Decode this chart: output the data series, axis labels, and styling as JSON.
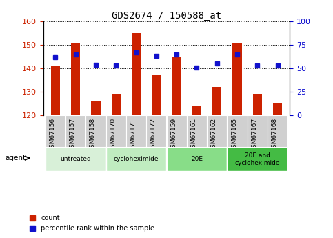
{
  "title": "GDS2674 / 150588_at",
  "samples": [
    "GSM67156",
    "GSM67157",
    "GSM67158",
    "GSM67170",
    "GSM67171",
    "GSM67172",
    "GSM67159",
    "GSM67161",
    "GSM67162",
    "GSM67165",
    "GSM67167",
    "GSM67168"
  ],
  "counts": [
    141,
    151,
    126,
    129,
    155,
    137,
    145,
    124,
    132,
    151,
    129,
    125
  ],
  "percentiles": [
    62,
    65,
    54,
    53,
    67,
    63,
    65,
    51,
    55,
    65,
    53,
    53
  ],
  "ylim_left": [
    120,
    160
  ],
  "ylim_right": [
    0,
    100
  ],
  "yticks_left": [
    120,
    130,
    140,
    150,
    160
  ],
  "yticks_right": [
    0,
    25,
    50,
    75,
    100
  ],
  "bar_color": "#cc2200",
  "dot_color": "#1111cc",
  "agent_groups": [
    {
      "label": "untreated",
      "start": 0,
      "end": 3,
      "color": "#d8f0d8"
    },
    {
      "label": "cycloheximide",
      "start": 3,
      "end": 6,
      "color": "#c0ecc0"
    },
    {
      "label": "20E",
      "start": 6,
      "end": 9,
      "color": "#88dd88"
    },
    {
      "label": "20E and\ncycloheximide",
      "start": 9,
      "end": 12,
      "color": "#44bb44"
    }
  ],
  "tick_label_bg": "#d0d0d0",
  "xlabel_fontsize": 6.5,
  "title_fontsize": 10,
  "tick_fontsize": 8,
  "bar_width": 0.45
}
